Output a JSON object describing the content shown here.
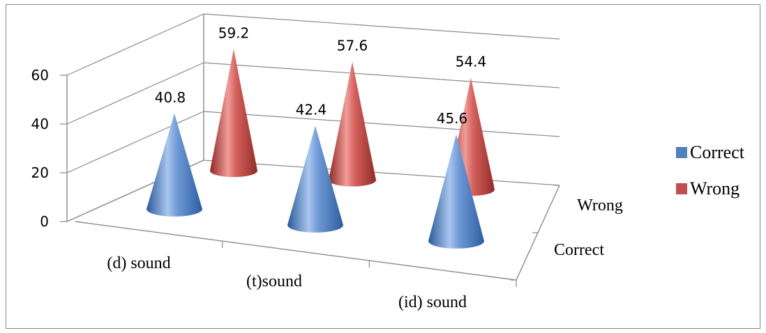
{
  "chart_data": {
    "type": "bar",
    "style": "3d-cone",
    "categories": [
      "(d) sound",
      "(t)sound",
      "(id) sound"
    ],
    "series": [
      {
        "name": "Correct",
        "values": [
          40.8,
          42.4,
          45.6
        ],
        "color": "#4f81bd"
      },
      {
        "name": "Wrong",
        "values": [
          59.2,
          57.6,
          54.4
        ],
        "color": "#c0504d"
      }
    ],
    "depth_labels": [
      "Correct",
      "Wrong"
    ],
    "yticks": [
      "0",
      "20",
      "40",
      "60"
    ],
    "ylim": [
      0,
      60
    ],
    "grid": true,
    "legend": "right"
  }
}
